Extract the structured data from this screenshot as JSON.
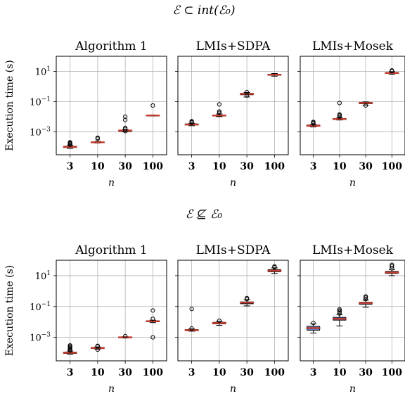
{
  "figure": {
    "sections": [
      {
        "title": "ℰ ⊂ int(ℰ₀)"
      },
      {
        "title": "ℰ ⊈ ℰ₀"
      }
    ]
  },
  "chart_data": [
    {
      "type": "box",
      "section": 0,
      "title": "Algorithm 1",
      "categories": [
        "3",
        "10",
        "30",
        "100"
      ],
      "xlabel": "n",
      "ylabel": "Execution time (s)",
      "yscale": "log",
      "ylim": [
        3e-05,
        100
      ],
      "yticks": [
        "10^1",
        "10^-1",
        "10^-3"
      ],
      "grid": true,
      "boxes": [
        {
          "q1": 9e-05,
          "median": 0.0001,
          "q3": 0.00011,
          "whislo": 8e-05,
          "whishi": 0.00013,
          "fliers": [
            0.00014,
            0.00016,
            0.00018,
            0.0002
          ]
        },
        {
          "q1": 0.00019,
          "median": 0.0002,
          "q3": 0.00021,
          "whislo": 0.00018,
          "whishi": 0.00023,
          "fliers": [
            0.00035,
            0.0004
          ]
        },
        {
          "q1": 0.00105,
          "median": 0.0012,
          "q3": 0.00125,
          "whislo": 0.001,
          "whishi": 0.0014,
          "fliers": [
            0.0011,
            0.0015,
            0.0018,
            0.006,
            0.01
          ]
        },
        {
          "q1": 0.0115,
          "median": 0.012,
          "q3": 0.0125,
          "whislo": 0.011,
          "whishi": 0.013,
          "fliers": [
            0.055
          ]
        }
      ]
    },
    {
      "type": "box",
      "section": 0,
      "title": "LMIs+SDPA",
      "categories": [
        "3",
        "10",
        "30",
        "100"
      ],
      "xlabel": "n",
      "yscale": "log",
      "ylim": [
        3e-05,
        100
      ],
      "grid": true,
      "boxes": [
        {
          "q1": 0.0028,
          "median": 0.003,
          "q3": 0.0033,
          "whislo": 0.0025,
          "whishi": 0.0036,
          "fliers": [
            0.004,
            0.0045,
            0.005
          ]
        },
        {
          "q1": 0.011,
          "median": 0.012,
          "q3": 0.013,
          "whislo": 0.01,
          "whishi": 0.015,
          "fliers": [
            0.018,
            0.022,
            0.065
          ]
        },
        {
          "q1": 0.28,
          "median": 0.32,
          "q3": 0.35,
          "whislo": 0.2,
          "whishi": 0.4,
          "fliers": [
            0.25,
            0.42
          ]
        },
        {
          "q1": 5.5,
          "median": 6.0,
          "q3": 6.5,
          "whislo": 4.8,
          "whishi": 7.2,
          "fliers": []
        }
      ]
    },
    {
      "type": "box",
      "section": 0,
      "title": "LMIs+Mosek",
      "categories": [
        "3",
        "10",
        "30",
        "100"
      ],
      "xlabel": "n",
      "yscale": "log",
      "ylim": [
        3e-05,
        100
      ],
      "grid": true,
      "boxes": [
        {
          "q1": 0.0023,
          "median": 0.0025,
          "q3": 0.0028,
          "whislo": 0.0021,
          "whishi": 0.003,
          "fliers": [
            0.0035,
            0.004,
            0.0045
          ]
        },
        {
          "q1": 0.0065,
          "median": 0.007,
          "q3": 0.0075,
          "whislo": 0.006,
          "whishi": 0.0085,
          "fliers": [
            0.01,
            0.012,
            0.014,
            0.08
          ]
        },
        {
          "q1": 0.072,
          "median": 0.08,
          "q3": 0.088,
          "whislo": 0.058,
          "whishi": 0.095,
          "fliers": [
            0.055
          ]
        },
        {
          "q1": 7.2,
          "median": 7.8,
          "q3": 8.4,
          "whislo": 6.5,
          "whishi": 9.5,
          "fliers": [
            10.5,
            11.5
          ]
        }
      ]
    },
    {
      "type": "box",
      "section": 1,
      "title": "Algorithm 1",
      "categories": [
        "3",
        "10",
        "30",
        "100"
      ],
      "xlabel": "n",
      "ylabel": "Execution time (s)",
      "yscale": "log",
      "ylim": [
        3e-05,
        100
      ],
      "yticks": [
        "10^1",
        "10^-1",
        "10^-3"
      ],
      "grid": true,
      "boxes": [
        {
          "q1": 9e-05,
          "median": 0.0001,
          "q3": 0.00011,
          "whislo": 8e-05,
          "whishi": 0.00013,
          "fliers": [
            0.00014,
            0.00016,
            0.00019,
            0.00022,
            0.00026,
            0.0003
          ]
        },
        {
          "q1": 0.00019,
          "median": 0.0002,
          "q3": 0.00022,
          "whislo": 0.00017,
          "whishi": 0.00024,
          "fliers": [
            0.00016,
            0.00026,
            0.00028
          ]
        },
        {
          "q1": 0.00095,
          "median": 0.001,
          "q3": 0.00105,
          "whislo": 0.0009,
          "whishi": 0.0011,
          "fliers": [
            0.0012
          ]
        },
        {
          "q1": 0.0105,
          "median": 0.011,
          "q3": 0.012,
          "whislo": 0.009,
          "whishi": 0.013,
          "fliers": [
            0.001,
            0.016,
            0.055
          ]
        }
      ]
    },
    {
      "type": "box",
      "section": 1,
      "title": "LMIs+SDPA",
      "categories": [
        "3",
        "10",
        "30",
        "100"
      ],
      "xlabel": "n",
      "yscale": "log",
      "ylim": [
        3e-05,
        100
      ],
      "grid": true,
      "boxes": [
        {
          "q1": 0.0027,
          "median": 0.0029,
          "q3": 0.0032,
          "whislo": 0.0025,
          "whishi": 0.0035,
          "fliers": [
            0.0038,
            0.07
          ]
        },
        {
          "q1": 0.0075,
          "median": 0.0085,
          "q3": 0.0095,
          "whislo": 0.006,
          "whishi": 0.011,
          "fliers": [
            0.012
          ]
        },
        {
          "q1": 0.15,
          "median": 0.18,
          "q3": 0.2,
          "whislo": 0.11,
          "whishi": 0.28,
          "fliers": [
            0.3,
            0.35
          ]
        },
        {
          "q1": 18.0,
          "median": 21.0,
          "q3": 25.0,
          "whislo": 14.0,
          "whishi": 32.0,
          "fliers": [
            35.0,
            40.0
          ]
        }
      ]
    },
    {
      "type": "box",
      "section": 1,
      "title": "LMIs+Mosek",
      "categories": [
        "3",
        "10",
        "30",
        "100"
      ],
      "xlabel": "n",
      "yscale": "log",
      "ylim": [
        3e-05,
        100
      ],
      "grid": true,
      "boxes": [
        {
          "q1": 0.0029,
          "median": 0.004,
          "q3": 0.0052,
          "whislo": 0.0019,
          "whishi": 0.0075,
          "fliers": [
            0.0085
          ]
        },
        {
          "q1": 0.013,
          "median": 0.016,
          "q3": 0.02,
          "whislo": 0.0055,
          "whishi": 0.03,
          "fliers": [
            0.035,
            0.045,
            0.055,
            0.065
          ]
        },
        {
          "q1": 0.14,
          "median": 0.17,
          "q3": 0.19,
          "whislo": 0.09,
          "whishi": 0.26,
          "fliers": [
            0.3,
            0.38,
            0.45
          ]
        },
        {
          "q1": 14.0,
          "median": 16.0,
          "q3": 19.0,
          "whislo": 10.0,
          "whishi": 24.0,
          "fliers": [
            30.0,
            40.0,
            50.0
          ]
        }
      ]
    }
  ]
}
